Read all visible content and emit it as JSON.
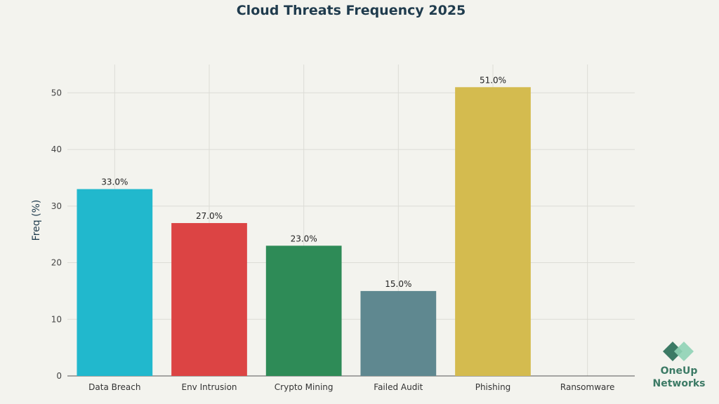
{
  "chart_data": {
    "type": "bar",
    "title": "Cloud Threats Frequency 2025",
    "ylabel": "Freq (%)",
    "xlabel": "",
    "ylim": [
      0,
      55
    ],
    "yticks": [
      0,
      10,
      20,
      30,
      40,
      50
    ],
    "grid": true,
    "categories": [
      "Data Breach",
      "Env Intrusion",
      "Crypto Mining",
      "Failed Audit",
      "Phishing",
      "Ransomware"
    ],
    "values": [
      33,
      27,
      23,
      15,
      51,
      null
    ],
    "data_labels": [
      "33.0%",
      "27.0%",
      "23.0%",
      "15.0%",
      "51.0%",
      ""
    ],
    "colors": [
      "#21b8cd",
      "#dc4444",
      "#2e8b57",
      "#5f8890",
      "#d4bb4f",
      "#999999"
    ]
  },
  "branding": {
    "logo_text": "OneUp Networks",
    "logo_colors": [
      "#3c7a65",
      "#8fd3b5"
    ]
  }
}
